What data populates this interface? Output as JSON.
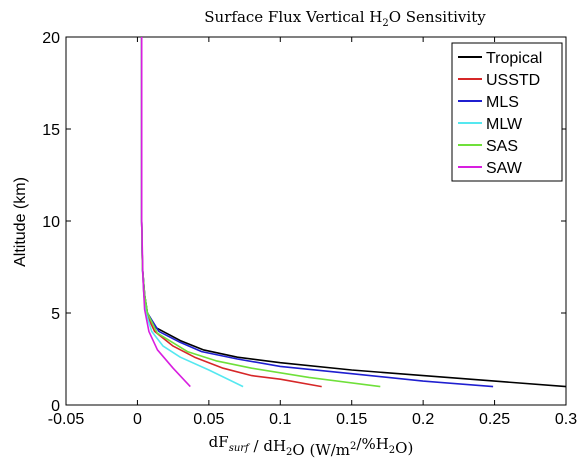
{
  "chart_data": {
    "type": "line",
    "title": {
      "text": "Surface Flux Vertical H",
      "sub": "2",
      "tail": "O Sensitivity"
    },
    "ylabel": "Altitude (km)",
    "xlabel": {
      "parts": [
        {
          "t": "dF",
          "style": "normal"
        },
        {
          "t": "surf",
          "style": "sub-italic"
        },
        {
          "t": " / dH",
          "style": "normal"
        },
        {
          "t": "2",
          "style": "sub"
        },
        {
          "t": "O (W/m",
          "style": "normal"
        },
        {
          "t": "2",
          "style": "sup"
        },
        {
          "t": "/%H",
          "style": "normal"
        },
        {
          "t": "2",
          "style": "sub"
        },
        {
          "t": "O)",
          "style": "normal"
        }
      ]
    },
    "xlim": [
      -0.05,
      0.3
    ],
    "ylim": [
      0,
      20
    ],
    "x_ticks": [
      -0.05,
      0,
      0.05,
      0.1,
      0.15,
      0.2,
      0.25,
      0.3
    ],
    "x_tick_labels": [
      "-0.05",
      "0",
      "0.05",
      "0.1",
      "0.15",
      "0.2",
      "0.25",
      "0.3"
    ],
    "y_ticks": [
      0,
      5,
      10,
      15,
      20
    ],
    "y_tick_labels": [
      "0",
      "5",
      "10",
      "15",
      "20"
    ],
    "grid": false,
    "legend_position": "top-right",
    "series": [
      {
        "name": "Tropical",
        "color": "#000000",
        "x": [
          0.3,
          0.25,
          0.2,
          0.15,
          0.1,
          0.07,
          0.046,
          0.03,
          0.013,
          0.007,
          0.005,
          0.0035,
          0.003,
          0.003,
          0.003
        ],
        "y": [
          1.0,
          1.3,
          1.6,
          1.9,
          2.3,
          2.6,
          3.0,
          3.5,
          4.2,
          5.0,
          6.0,
          7.5,
          10,
          15,
          20
        ]
      },
      {
        "name": "USSTD",
        "color": "#d62728",
        "x": [
          0.129,
          0.1,
          0.08,
          0.06,
          0.04,
          0.025,
          0.012,
          0.006,
          0.0045,
          0.0035,
          0.003,
          0.003,
          0.003
        ],
        "y": [
          1.0,
          1.4,
          1.6,
          2.0,
          2.6,
          3.2,
          4.0,
          5.0,
          6.0,
          7.5,
          10,
          15,
          20
        ]
      },
      {
        "name": "MLS",
        "color": "#1f1fd0",
        "x": [
          0.249,
          0.2,
          0.15,
          0.1,
          0.07,
          0.045,
          0.03,
          0.015,
          0.007,
          0.005,
          0.0035,
          0.003,
          0.003,
          0.003
        ],
        "y": [
          1.0,
          1.3,
          1.7,
          2.1,
          2.5,
          2.9,
          3.4,
          4.0,
          5.0,
          6.0,
          7.5,
          10,
          15,
          20
        ]
      },
      {
        "name": "MLW",
        "color": "#55e8f0",
        "x": [
          0.074,
          0.05,
          0.03,
          0.018,
          0.01,
          0.006,
          0.0045,
          0.0035,
          0.003,
          0.003,
          0.003
        ],
        "y": [
          1.0,
          1.9,
          2.6,
          3.2,
          4.0,
          5.0,
          6.0,
          7.5,
          10,
          15,
          20
        ]
      },
      {
        "name": "SAS",
        "color": "#6fe03a",
        "x": [
          0.17,
          0.12,
          0.08,
          0.055,
          0.035,
          0.014,
          0.007,
          0.005,
          0.0035,
          0.003,
          0.003,
          0.003
        ],
        "y": [
          1.0,
          1.5,
          2.0,
          2.4,
          2.9,
          3.9,
          5.0,
          6.0,
          7.5,
          10,
          15,
          20
        ]
      },
      {
        "name": "SAW",
        "color": "#d81ee0",
        "x": [
          0.037,
          0.025,
          0.014,
          0.008,
          0.005,
          0.0038,
          0.003,
          0.003,
          0.003
        ],
        "y": [
          1.0,
          2.0,
          3.0,
          4.0,
          5.2,
          7.0,
          10,
          15,
          20
        ]
      }
    ]
  }
}
